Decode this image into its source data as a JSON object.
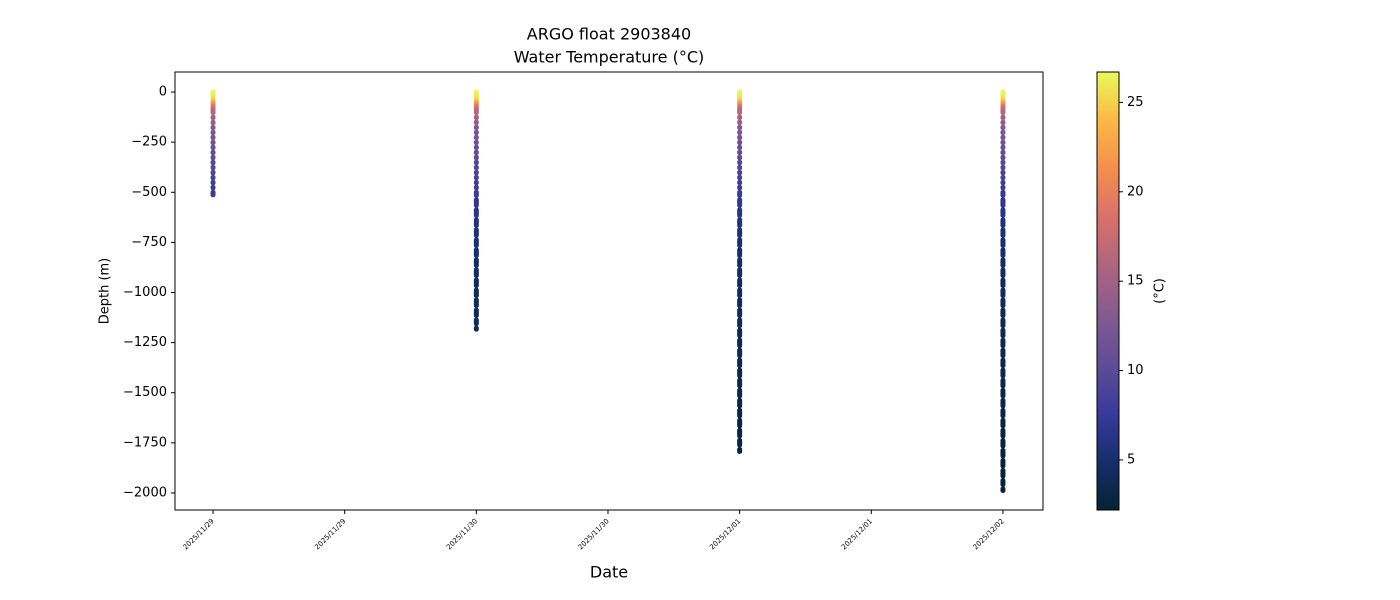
{
  "chart_data": {
    "type": "scatter",
    "title": "ARGO float 2903840",
    "subtitle": "Water Temperature (°C)",
    "x_label": "Date",
    "y_label": "Depth (m)",
    "colorbar_label": "(°C)",
    "xlim": [
      "2025-11-28T20:32",
      "2025-12-02T03:39"
    ],
    "xticks": [
      {
        "value": "2025-11-29T00:00",
        "label": "2025/11/29"
      },
      {
        "value": "2025-11-29T12:00",
        "label": "2025/11/29"
      },
      {
        "value": "2025-11-30T00:00",
        "label": "2025/11/30"
      },
      {
        "value": "2025-11-30T12:00",
        "label": "2025/11/30"
      },
      {
        "value": "2025-12-01T00:00",
        "label": "2025/12/01"
      },
      {
        "value": "2025-12-01T12:00",
        "label": "2025/12/01"
      },
      {
        "value": "2025-12-02T00:00",
        "label": "2025/12/02"
      }
    ],
    "ylim": [
      -2085,
      100
    ],
    "yticks": [
      0,
      {
        "value": -250,
        "label": "−250"
      },
      {
        "value": -500,
        "label": "−500"
      },
      {
        "value": -750,
        "label": "−750"
      },
      {
        "value": -1000,
        "label": "−1000"
      },
      {
        "value": -1250,
        "label": "−1250"
      },
      {
        "value": -1500,
        "label": "−1500"
      },
      {
        "value": -1750,
        "label": "−1750"
      },
      {
        "value": -2000,
        "label": "−2000"
      }
    ],
    "clim": [
      2.2,
      26.7
    ],
    "cticks": [
      5,
      10,
      15,
      20,
      25
    ],
    "colormap": [
      "#042333",
      "#152e6d",
      "#3a3a9a",
      "#5f4d97",
      "#855a8f",
      "#ad6580",
      "#d7716a",
      "#f48d4e",
      "#fab845",
      "#e8fa5b"
    ],
    "series": [
      {
        "x": "2025-11-29T00:00",
        "depth": [
          0,
          -10,
          -20,
          -30,
          -40,
          -50,
          -60,
          -70,
          -80,
          -90,
          -100,
          -125,
          -150,
          -175,
          -200,
          -225,
          -250,
          -275,
          -300,
          -325,
          -350,
          -375,
          -400,
          -425,
          -450,
          -475,
          -500,
          -510
        ],
        "temperature": [
          26.5,
          26.4,
          26.2,
          25.8,
          25.0,
          23.5,
          21.5,
          19.5,
          18,
          17,
          16.3,
          15,
          14,
          13.2,
          12.5,
          12,
          11.5,
          11,
          10.6,
          10.2,
          9.8,
          9.4,
          9.0,
          8.6,
          8.2,
          7.8,
          7.5,
          7.4
        ]
      },
      {
        "x": "2025-11-30T00:00",
        "depth": [
          0,
          -10,
          -20,
          -30,
          -40,
          -50,
          -60,
          -70,
          -80,
          -90,
          -100,
          -125,
          -150,
          -175,
          -200,
          -225,
          -250,
          -275,
          -300,
          -325,
          -350,
          -375,
          -400,
          -425,
          -450,
          -475,
          -500,
          -550,
          -600,
          -650,
          -700,
          -750,
          -800,
          -850,
          -900,
          -950,
          -1000,
          -1050,
          -1100,
          -1150,
          -1180
        ],
        "temperature": [
          26.5,
          26.4,
          26.2,
          25.8,
          25.0,
          23.5,
          21.5,
          19.5,
          18,
          17,
          16.3,
          15,
          14,
          13.2,
          12.5,
          12,
          11.5,
          11,
          10.6,
          10.2,
          9.8,
          9.4,
          9.0,
          8.6,
          8.2,
          7.8,
          7.5,
          6.9,
          6.4,
          5.9,
          5.5,
          5.2,
          4.9,
          4.7,
          4.5,
          4.3,
          4.2,
          4.1,
          4.0,
          3.9,
          3.85
        ]
      },
      {
        "x": "2025-12-01T00:00",
        "depth": [
          0,
          -10,
          -20,
          -30,
          -40,
          -50,
          -60,
          -70,
          -80,
          -90,
          -100,
          -125,
          -150,
          -175,
          -200,
          -225,
          -250,
          -275,
          -300,
          -325,
          -350,
          -375,
          -400,
          -425,
          -450,
          -475,
          -500,
          -550,
          -600,
          -650,
          -700,
          -750,
          -800,
          -850,
          -900,
          -950,
          -1000,
          -1050,
          -1100,
          -1150,
          -1200,
          -1250,
          -1300,
          -1350,
          -1400,
          -1450,
          -1500,
          -1550,
          -1600,
          -1650,
          -1700,
          -1750,
          -1790
        ],
        "temperature": [
          26.5,
          26.4,
          26.2,
          25.8,
          25.0,
          23.5,
          21.5,
          19.5,
          18,
          17,
          16.3,
          15,
          14,
          13.2,
          12.5,
          12,
          11.5,
          11,
          10.6,
          10.2,
          9.8,
          9.4,
          9.0,
          8.6,
          8.2,
          7.8,
          7.5,
          6.9,
          6.4,
          5.9,
          5.5,
          5.2,
          4.9,
          4.7,
          4.5,
          4.3,
          4.2,
          4.1,
          4.0,
          3.9,
          3.8,
          3.7,
          3.6,
          3.5,
          3.4,
          3.3,
          3.2,
          3.1,
          3.0,
          2.9,
          2.8,
          2.75,
          2.7
        ]
      },
      {
        "x": "2025-12-02T00:00",
        "depth": [
          0,
          -10,
          -20,
          -30,
          -40,
          -50,
          -60,
          -70,
          -80,
          -90,
          -100,
          -125,
          -150,
          -175,
          -200,
          -225,
          -250,
          -275,
          -300,
          -325,
          -350,
          -375,
          -400,
          -425,
          -450,
          -475,
          -500,
          -550,
          -600,
          -650,
          -700,
          -750,
          -800,
          -850,
          -900,
          -950,
          -1000,
          -1050,
          -1100,
          -1150,
          -1200,
          -1250,
          -1300,
          -1350,
          -1400,
          -1450,
          -1500,
          -1550,
          -1600,
          -1650,
          -1700,
          -1750,
          -1800,
          -1850,
          -1900,
          -1950,
          -1985
        ],
        "temperature": [
          26.5,
          26.4,
          26.2,
          25.8,
          25.0,
          23.5,
          21.5,
          19.5,
          18,
          17,
          16.3,
          15,
          14,
          13.2,
          12.5,
          12,
          11.5,
          11,
          10.6,
          10.2,
          9.8,
          9.4,
          9.0,
          8.6,
          8.2,
          7.8,
          7.5,
          6.9,
          6.4,
          5.9,
          5.5,
          5.2,
          4.9,
          4.7,
          4.5,
          4.3,
          4.2,
          4.1,
          4.0,
          3.9,
          3.8,
          3.7,
          3.6,
          3.5,
          3.4,
          3.3,
          3.2,
          3.1,
          3.0,
          2.9,
          2.8,
          2.75,
          2.7,
          2.6,
          2.5,
          2.45,
          2.4
        ]
      }
    ]
  }
}
